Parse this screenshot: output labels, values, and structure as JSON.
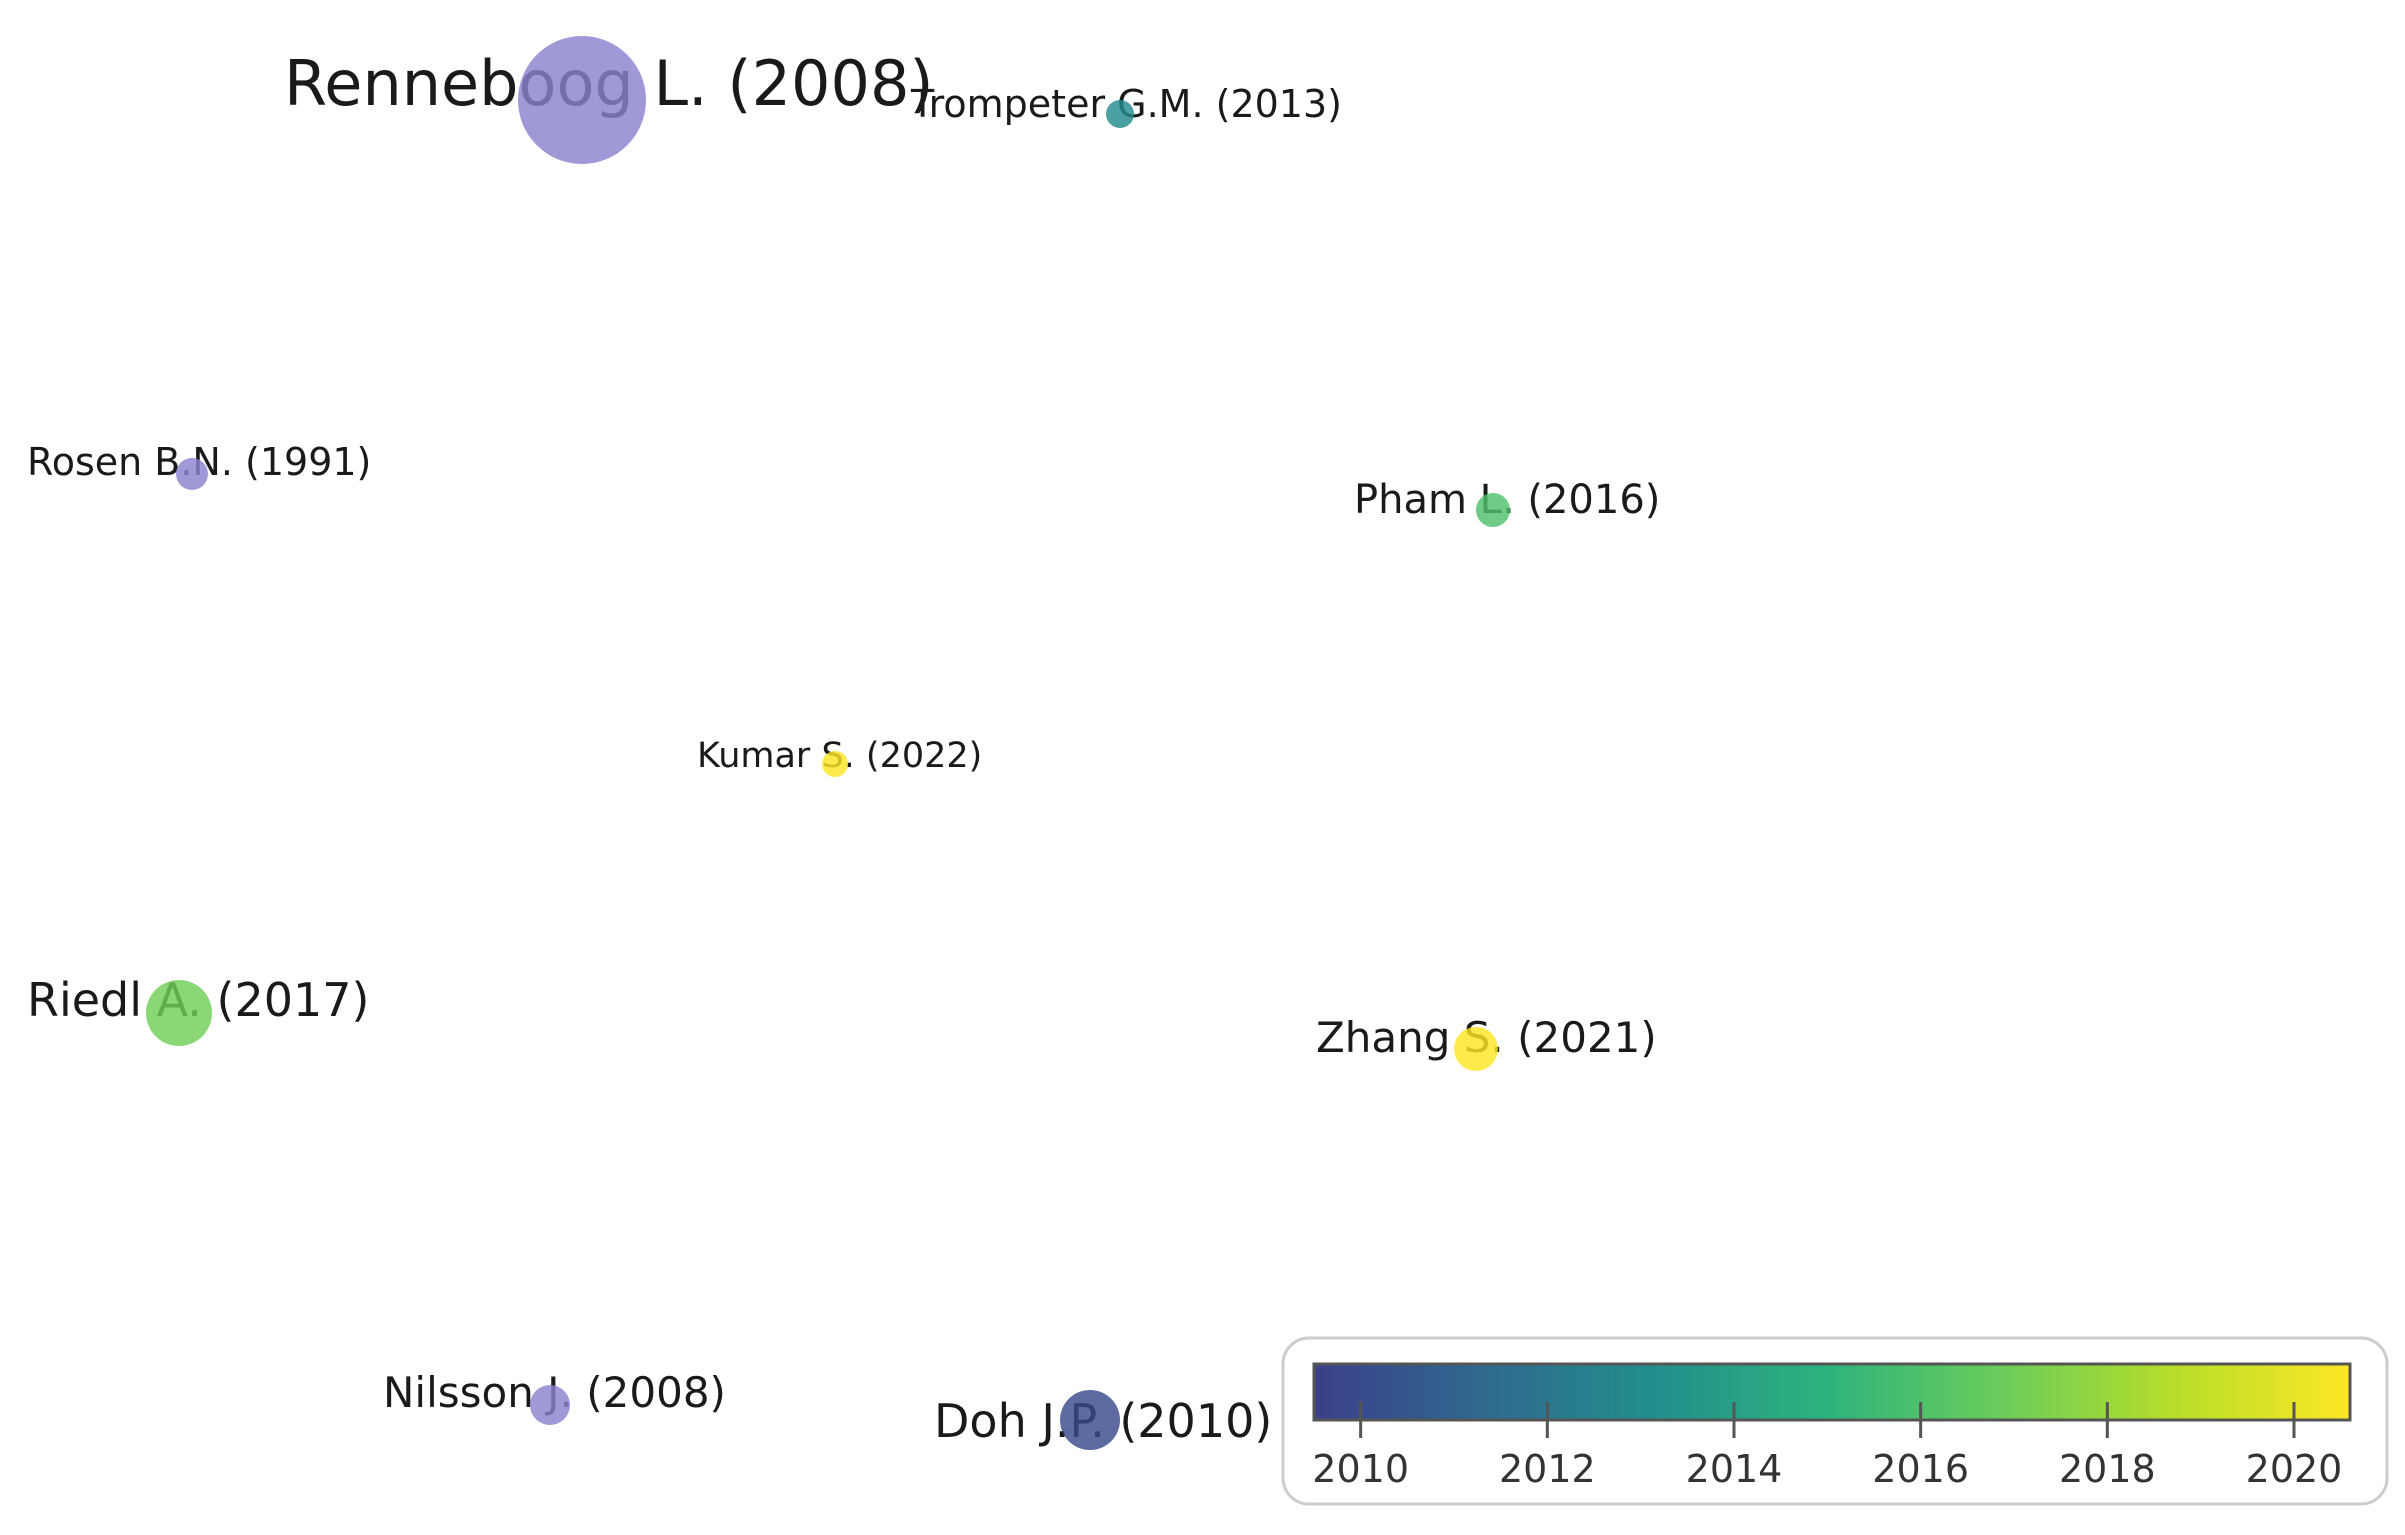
{
  "colors": {
    "scale_stops": [
      "#3b3f8a",
      "#2f6a8e",
      "#21908c",
      "#2fb47c",
      "#6ccd5a",
      "#b8de29",
      "#fde725"
    ],
    "legacy_node_fill": "#8a83cf",
    "label": "#1a1a1a",
    "legend_border": "#cccccc"
  },
  "nodes": [
    {
      "id": "renneboog",
      "label": "Renneboog L. (2008)",
      "year": 2008
    },
    {
      "id": "trompeter",
      "label": "Trompeter G.M. (2013)",
      "year": 2013
    },
    {
      "id": "rosen",
      "label": "Rosen B.N. (1991)",
      "year": 1991
    },
    {
      "id": "pham",
      "label": "Pham L. (2016)",
      "year": 2016
    },
    {
      "id": "kumar",
      "label": "Kumar S. (2022)",
      "year": 2022
    },
    {
      "id": "riedl",
      "label": "Riedl A. (2017)",
      "year": 2017
    },
    {
      "id": "zhang",
      "label": "Zhang S. (2021)",
      "year": 2021
    },
    {
      "id": "nilsson",
      "label": "Nilsson J. (2008)",
      "year": 2008
    },
    {
      "id": "doh",
      "label": "Doh J.P. (2010)",
      "year": 2010
    }
  ],
  "legend": {
    "range": [
      2009.5,
      2020.6
    ],
    "ticks": [
      "2010",
      "2012",
      "2014",
      "2016",
      "2018",
      "2020"
    ]
  }
}
